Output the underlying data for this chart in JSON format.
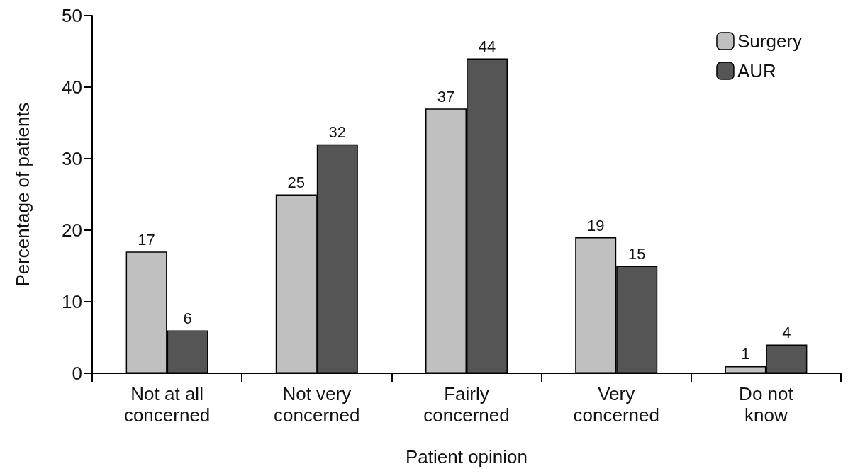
{
  "chart_data": {
    "type": "bar",
    "xlabel": "Patient opinion",
    "ylabel": "Percentage of patients",
    "categories": [
      "Not at all\nconcerned",
      "Not very\nconcerned",
      "Fairly\nconcerned",
      "Very\nconcerned",
      "Do not\nknow"
    ],
    "series": [
      {
        "name": "Surgery",
        "color": "#c0c0c0",
        "values": [
          17,
          25,
          37,
          19,
          1
        ]
      },
      {
        "name": "AUR",
        "color": "#555555",
        "values": [
          6,
          32,
          44,
          15,
          4
        ]
      }
    ],
    "ylim": [
      0,
      50
    ],
    "yticks": [
      0,
      10,
      20,
      30,
      40,
      50
    ],
    "grid": false,
    "legend": "top right",
    "data_labels": true
  }
}
